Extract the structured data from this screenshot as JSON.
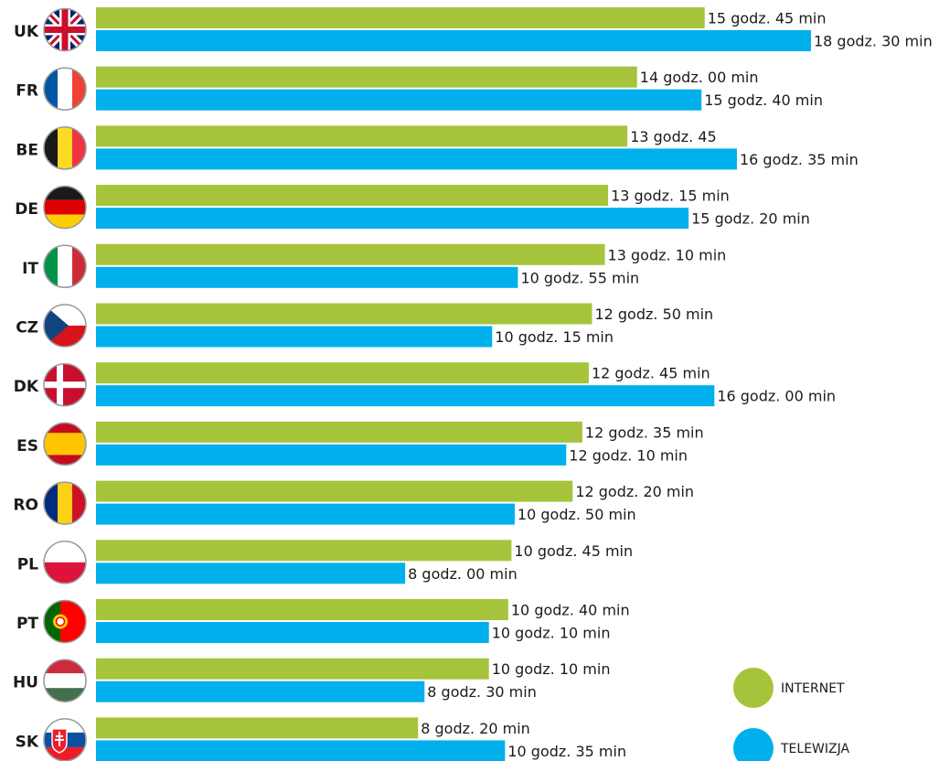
{
  "colors": {
    "internet": "#a6c43b",
    "telewizja": "#00b0ec"
  },
  "legend": [
    {
      "key": "internet",
      "label": "INTERNET"
    },
    {
      "key": "telewizja",
      "label": "TELEWIZJA"
    }
  ],
  "chart_data": {
    "type": "bar",
    "orientation": "horizontal",
    "categories": [
      "UK",
      "FR",
      "BE",
      "DE",
      "IT",
      "CZ",
      "DK",
      "ES",
      "RO",
      "PL",
      "PT",
      "HU",
      "SK"
    ],
    "flag_icons": [
      "uk-flag-icon",
      "france-flag-icon",
      "belgium-flag-icon",
      "germany-flag-icon",
      "italy-flag-icon",
      "czech-flag-icon",
      "denmark-flag-icon",
      "spain-flag-icon",
      "romania-flag-icon",
      "poland-flag-icon",
      "portugal-flag-icon",
      "hungary-flag-icon",
      "slovakia-flag-icon"
    ],
    "unit": "minutes per week",
    "series": [
      {
        "key": "internet",
        "name": "INTERNET",
        "values": [
          945,
          840,
          825,
          795,
          790,
          770,
          765,
          755,
          740,
          645,
          640,
          610,
          500
        ],
        "labels": [
          "15 godz. 45 min",
          "14 godz. 00 min",
          "13 godz. 45",
          "13 godz. 15 min",
          "13 godz. 10 min",
          "12 godz. 50 min",
          "12 godz. 45 min",
          "12 godz. 35 min",
          "12 godz. 20 min",
          "10 godz. 45 min",
          "10 godz. 40 min",
          "10 godz. 10 min",
          "8 godz. 20 min"
        ]
      },
      {
        "key": "telewizja",
        "name": "TELEWIZJA",
        "values": [
          1110,
          940,
          995,
          920,
          655,
          615,
          960,
          730,
          650,
          480,
          610,
          510,
          635
        ],
        "labels": [
          "18 godz. 30 min",
          "15 godz. 40 min",
          "16 godz. 35 min",
          "15 godz. 20 min",
          "10 godz. 55 min",
          "10 godz. 15 min",
          "16 godz. 00 min",
          "12 godz. 10 min",
          "10 godz. 50 min",
          "8 godz. 00 min",
          "10 godz. 10 min",
          "8 godz. 30 min",
          "10 godz. 35 min"
        ]
      }
    ]
  }
}
